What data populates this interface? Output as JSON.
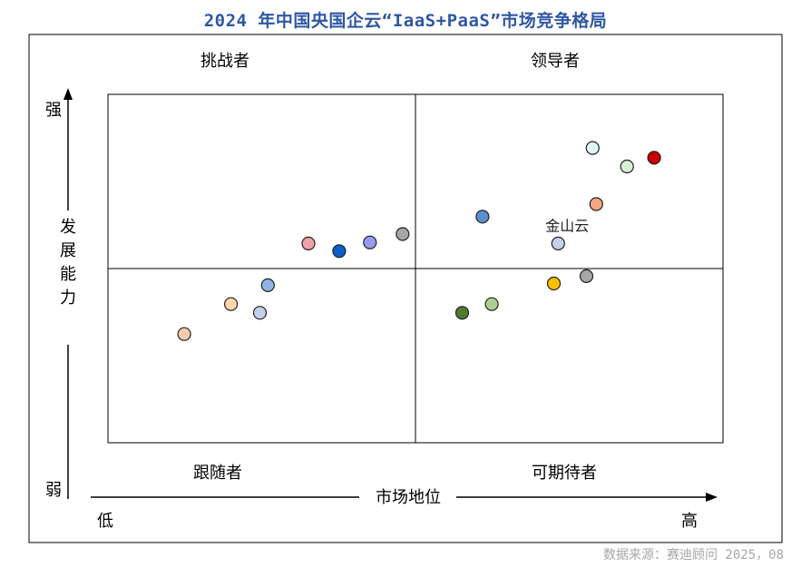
{
  "chart_data": {
    "type": "scatter",
    "title": "2024 年中国央国企云“IaaS+PaaS”市场竞争格局",
    "source": "数据来源：赛迪顾问  2025，08",
    "x_axis": {
      "label": "市场地位",
      "low": "低",
      "high": "高",
      "range": [
        0,
        100
      ]
    },
    "y_axis": {
      "label": "发展能力",
      "low": "弱",
      "high": "强",
      "range": [
        0,
        100
      ]
    },
    "quadrants": {
      "top_left": "挑战者",
      "top_right": "领导者",
      "bottom_left": "跟随者",
      "bottom_right": "可期待者"
    },
    "points": [
      {
        "x": 12.4,
        "y": 31.2,
        "color": "#f8cbad"
      },
      {
        "x": 20.0,
        "y": 39.8,
        "color": "#ffd7a8"
      },
      {
        "x": 24.7,
        "y": 37.3,
        "color": "#c2d2ee"
      },
      {
        "x": 26.0,
        "y": 45.2,
        "color": "#8eb4e3"
      },
      {
        "x": 32.6,
        "y": 57.2,
        "color": "#f4a0a8"
      },
      {
        "x": 37.6,
        "y": 55.0,
        "color": "#0a5fc4"
      },
      {
        "x": 42.6,
        "y": 57.5,
        "color": "#9999ee"
      },
      {
        "x": 47.9,
        "y": 59.9,
        "color": "#a6a6a6"
      },
      {
        "x": 57.6,
        "y": 37.3,
        "color": "#4e7a2e"
      },
      {
        "x": 60.9,
        "y": 64.9,
        "color": "#5b8fcf"
      },
      {
        "x": 62.4,
        "y": 39.8,
        "color": "#a9d18e"
      },
      {
        "x": 72.5,
        "y": 45.7,
        "color": "#ffc000"
      },
      {
        "x": 73.2,
        "y": 57.2,
        "color": "#c5cfea",
        "label": "金山云"
      },
      {
        "x": 79.4,
        "y": 68.5,
        "color": "#f4a582"
      },
      {
        "x": 77.8,
        "y": 47.8,
        "color": "#a6a6a6"
      },
      {
        "x": 78.8,
        "y": 84.6,
        "color": "#dff6f6"
      },
      {
        "x": 84.4,
        "y": 79.3,
        "color": "#d9efd5"
      },
      {
        "x": 88.8,
        "y": 81.8,
        "color": "#cc0000"
      }
    ]
  }
}
